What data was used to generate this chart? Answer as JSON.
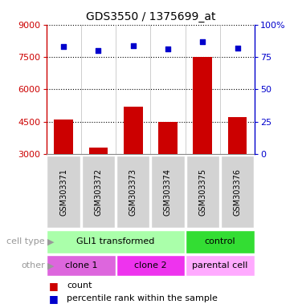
{
  "title": "GDS3550 / 1375699_at",
  "samples": [
    "GSM303371",
    "GSM303372",
    "GSM303373",
    "GSM303374",
    "GSM303375",
    "GSM303376"
  ],
  "counts": [
    4600,
    3300,
    5200,
    4500,
    7500,
    4700
  ],
  "percentile_ranks": [
    83,
    80,
    84,
    81,
    87,
    82
  ],
  "y_min": 3000,
  "y_max": 9000,
  "y_ticks_left": [
    3000,
    4500,
    6000,
    7500,
    9000
  ],
  "y_ticks_right": [
    0,
    25,
    50,
    75,
    100
  ],
  "bar_color": "#cc0000",
  "dot_color": "#0000cc",
  "cell_type_items": [
    {
      "label": "GLI1 transformed",
      "start": 0,
      "end": 4,
      "color": "#aaffaa"
    },
    {
      "label": "control",
      "start": 4,
      "end": 6,
      "color": "#33dd33"
    }
  ],
  "other_items": [
    {
      "label": "clone 1",
      "start": 0,
      "end": 2,
      "color": "#dd66dd"
    },
    {
      "label": "clone 2",
      "start": 2,
      "end": 4,
      "color": "#ee33ee"
    },
    {
      "label": "parental cell",
      "start": 4,
      "end": 6,
      "color": "#ffaaff"
    }
  ],
  "left_axis_color": "#cc0000",
  "right_axis_color": "#0000cc",
  "sample_box_color": "#d3d3d3",
  "row_label_color": "#999999"
}
